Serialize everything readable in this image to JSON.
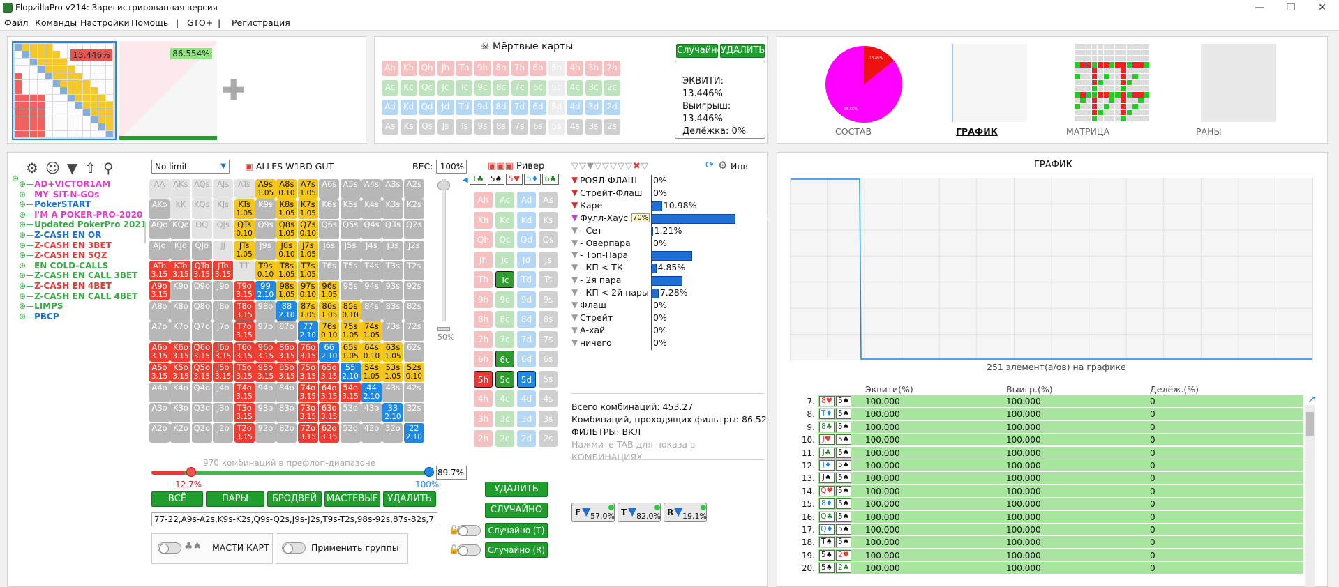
{
  "titlebar": {
    "title": "FlopzillaPro v214: Зарегистрированная версия"
  },
  "menu": [
    "Файл",
    "Команды",
    "Настройки",
    "Помощь",
    "|",
    "GTO+",
    "|",
    "Регистрация"
  ],
  "ranges": {
    "pct1": "13.446%",
    "pct2": "86.554%"
  },
  "dead": {
    "title": "Мёртвые карты",
    "random": "Случайно",
    "delete": "УДАЛИТЬ",
    "rows": [
      [
        "Ah",
        "Kh",
        "Qh",
        "Jh",
        "Th",
        "9h",
        "8h",
        "7h",
        "6h",
        "5h",
        "4h",
        "3h",
        "2h"
      ],
      [
        "Ac",
        "Kc",
        "Qc",
        "Jc",
        "Tc",
        "9c",
        "8c",
        "7c",
        "6c",
        "5c",
        "4c",
        "3c",
        "2c"
      ],
      [
        "Ad",
        "Kd",
        "Qd",
        "Jd",
        "Td",
        "9d",
        "8d",
        "7d",
        "6d",
        "5d",
        "4d",
        "3d",
        "2d"
      ],
      [
        "As",
        "Ks",
        "Qs",
        "Js",
        "Ts",
        "9s",
        "8s",
        "7s",
        "6s",
        "5s",
        "4s",
        "3s",
        "2s"
      ]
    ],
    "equity": "ЭКВИТИ: 13.446%",
    "win": "Выигрыш: 13.446%",
    "split": "Делёжка: 0%"
  },
  "tabs": [
    "СОСТАВ",
    "ГРАФИК",
    "МАТРИЦА",
    "РАНЫ"
  ],
  "pie": {
    "big": "86.55%",
    "small": "13.45%"
  },
  "tree": [
    {
      "label": "AD+VICTOR1AM",
      "color": "#e040c8"
    },
    {
      "label": "MY_SIT-N-GOs",
      "color": "#e040c8"
    },
    {
      "label": "PokerSTART",
      "color": "#1a6fd6"
    },
    {
      "label": "I'M A POKER-PRO-2020",
      "color": "#e040c8"
    },
    {
      "label": "Updated PokerPro 2021",
      "color": "#3aa845"
    },
    {
      "label": "Z-CASH EN OR",
      "color": "#1a6fd6"
    },
    {
      "label": "Z-CASH EN 3BET",
      "color": "#e53935"
    },
    {
      "label": "Z-CASH EN SQZ",
      "color": "#e53935"
    },
    {
      "label": "EN COLD-CALLS",
      "color": "#3aa845"
    },
    {
      "label": "Z-CASH EN CALL 3BET",
      "color": "#3aa845"
    },
    {
      "label": "Z-CASH EN 4BET",
      "color": "#e53935"
    },
    {
      "label": "Z-CASH EN CALL 4BET",
      "color": "#3aa845"
    },
    {
      "label": "LIMPS",
      "color": "#3aa845"
    },
    {
      "label": "PBCP",
      "color": "#1a6fd6"
    }
  ],
  "matrix": {
    "limit": "No limit",
    "name": "ALLES W1RD GUT",
    "weight_label": "ВЕС:",
    "weight": "100%",
    "combos_text": "970 комбинаций в префлоп-диапазоне",
    "slider_left": "12.7%",
    "slider_right": "100%",
    "slider_val": "89.7%",
    "scroll_pct": "50%",
    "btns": [
      "ВСЁ",
      "ПАРЫ",
      "БРОДВЕЙ",
      "МАСТЕВЫЕ",
      "УДАЛИТЬ"
    ],
    "range_text": "77-22,A9s-A2s,K9s-K2s,Q9s-Q2s,J9s-J2s,T9s-T2s,98s-92s,87s-82s,7",
    "suits_label": "МАСТИ КАРТ",
    "groups_label": "Применить группы"
  },
  "board": {
    "street": "Ривер",
    "cards": [
      "T♣",
      "5♠",
      "5♥",
      "5♦",
      "6♣"
    ],
    "grid": [
      [
        "Ah",
        "Ac",
        "Ad",
        "As"
      ],
      [
        "Kh",
        "Kc",
        "Kd",
        "Ks"
      ],
      [
        "Qh",
        "Qc",
        "Qd",
        "Qs"
      ],
      [
        "Jh",
        "Jc",
        "Jd",
        "Js"
      ],
      [
        "Th",
        "Tc",
        "Td",
        "Ts"
      ],
      [
        "9h",
        "9c",
        "9d",
        "9s"
      ],
      [
        "8h",
        "8c",
        "8d",
        "8s"
      ],
      [
        "7h",
        "7c",
        "7d",
        "7s"
      ],
      [
        "6h",
        "6c",
        "6d",
        "6s"
      ],
      [
        "5h",
        "5c",
        "5d",
        "5s"
      ],
      [
        "4h",
        "4c",
        "4d",
        "4s"
      ],
      [
        "3h",
        "3c",
        "3d",
        "3s"
      ],
      [
        "2h",
        "2c",
        "2d",
        "2s"
      ]
    ],
    "delete": "УДАЛИТЬ",
    "random": "СЛУЧАЙНО",
    "randomT": "Случайно (T)",
    "randomR": "Случайно (R)"
  },
  "filters": {
    "inv": "Инв",
    "items": [
      {
        "name": "РОЯЛ-ФЛАШ",
        "val": "0%",
        "pct": 0,
        "funnel": "#d32f2f"
      },
      {
        "name": "Стрейт-Флаш",
        "val": "0%",
        "pct": 0,
        "funnel": "#d32f2f"
      },
      {
        "name": "Каре",
        "val": "10.98%",
        "pct": 10.98,
        "funnel": "#d32f2f"
      },
      {
        "name": "Фулл-Хаус",
        "val": "89.02%",
        "pct": 89.02,
        "funnel": "#c040c0",
        "badge": "70%"
      },
      {
        "name": "- Сет",
        "val": "1.21%",
        "pct": 1.21,
        "funnel": "#999"
      },
      {
        "name": "- Оверпара",
        "val": "0%",
        "pct": 0,
        "funnel": "#999"
      },
      {
        "name": "- Топ-Пара",
        "val": "43.31%",
        "pct": 43.31,
        "funnel": "#999"
      },
      {
        "name": "- КП < ТК",
        "val": "4.85%",
        "pct": 4.85,
        "funnel": "#999"
      },
      {
        "name": "- 2я пара",
        "val": "32.36%",
        "pct": 32.36,
        "funnel": "#999"
      },
      {
        "name": "- КП < 2й пары",
        "val": "7.28%",
        "pct": 7.28,
        "funnel": "#999"
      },
      {
        "name": "Флаш",
        "val": "0%",
        "pct": 0,
        "funnel": "#999"
      },
      {
        "name": "Стрейт",
        "val": "0%",
        "pct": 0,
        "funnel": "#999"
      },
      {
        "name": "А-хай",
        "val": "0%",
        "pct": 0,
        "funnel": "#999"
      },
      {
        "name": "ничего",
        "val": "0%",
        "pct": 0,
        "funnel": "#999"
      }
    ],
    "total": "Всего комбинаций: 453.27",
    "passed": "Комбинаций, проходящих фильтры: 86.52",
    "filters_lbl": "ФИЛЬТРЫ:",
    "filters_on": "ВКЛ",
    "hint": "Нажмите TAB для показа в КОМБИНАЦИЯХ",
    "chips": [
      {
        "l": "F",
        "v": "57.0%"
      },
      {
        "l": "T",
        "v": "82.0%"
      },
      {
        "l": "R",
        "v": "19.1%"
      }
    ]
  },
  "graph": {
    "title": "ГРАФИК",
    "caption": "251 элемент(а/ов) на графике"
  },
  "table": {
    "headers": [
      "Эквити(%)",
      "Выигр.(%)",
      "Делёж.(%)"
    ],
    "rows": [
      {
        "n": "7.",
        "c1": "8♥",
        "c2": "5♠",
        "e": "100.000",
        "w": "100.000",
        "s": "0"
      },
      {
        "n": "8.",
        "c1": "T♦",
        "c2": "5♠",
        "e": "100.000",
        "w": "100.000",
        "s": "0"
      },
      {
        "n": "9.",
        "c1": "8♣",
        "c2": "5♠",
        "e": "100.000",
        "w": "100.000",
        "s": "0"
      },
      {
        "n": "10.",
        "c1": "J♥",
        "c2": "5♠",
        "e": "100.000",
        "w": "100.000",
        "s": "0"
      },
      {
        "n": "11.",
        "c1": "J♣",
        "c2": "5♠",
        "e": "100.000",
        "w": "100.000",
        "s": "0"
      },
      {
        "n": "12.",
        "c1": "J♦",
        "c2": "5♠",
        "e": "100.000",
        "w": "100.000",
        "s": "0"
      },
      {
        "n": "13.",
        "c1": "J♠",
        "c2": "5♠",
        "e": "100.000",
        "w": "100.000",
        "s": "0"
      },
      {
        "n": "14.",
        "c1": "Q♥",
        "c2": "5♠",
        "e": "100.000",
        "w": "100.000",
        "s": "0"
      },
      {
        "n": "15.",
        "c1": "8♦",
        "c2": "5♠",
        "e": "100.000",
        "w": "100.000",
        "s": "0"
      },
      {
        "n": "16.",
        "c1": "Q♣",
        "c2": "5♠",
        "e": "100.000",
        "w": "100.000",
        "s": "0"
      },
      {
        "n": "17.",
        "c1": "Q♦",
        "c2": "5♠",
        "e": "100.000",
        "w": "100.000",
        "s": "0"
      },
      {
        "n": "18.",
        "c1": "T♠",
        "c2": "5♠",
        "e": "100.000",
        "w": "100.000",
        "s": "0"
      },
      {
        "n": "19.",
        "c1": "5♠",
        "c2": "2♥",
        "e": "100.000",
        "w": "100.000",
        "s": "0"
      },
      {
        "n": "20.",
        "c1": "5♠",
        "c2": "2♣",
        "e": "100.000",
        "w": "100.000",
        "s": "0"
      }
    ]
  },
  "colors": {
    "green": "#1f9e2e",
    "red": "#e53935",
    "yellow": "#f5c518",
    "blue": "#1e88e5",
    "grey": "#b7b7b7"
  }
}
